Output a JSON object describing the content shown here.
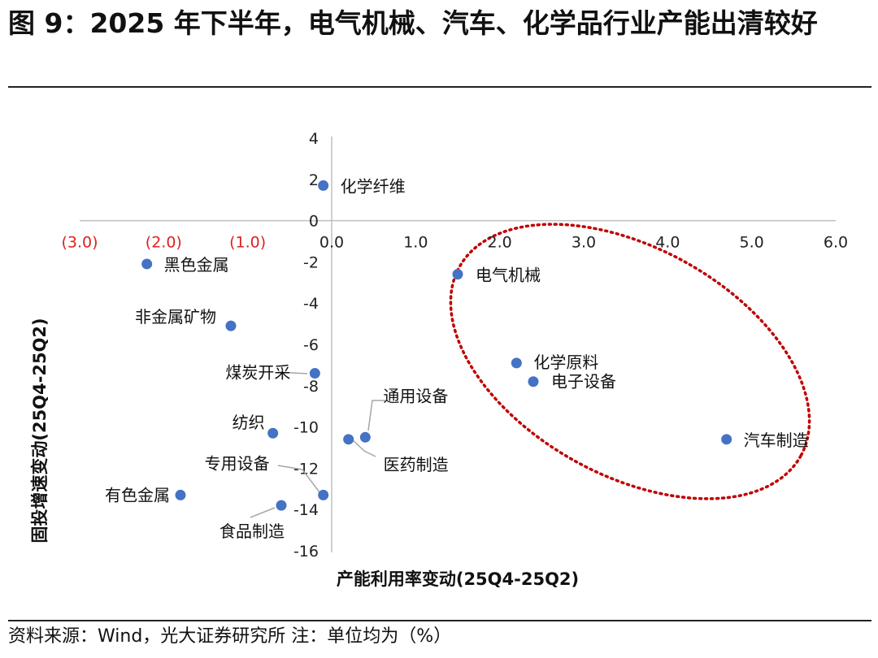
{
  "title": "图 9：2025 年下半年，电气机械、汽车、化学品行业产能出清较好",
  "source": "资料来源：Wind，光大证券研究所 注：单位均为（%）",
  "colors": {
    "point": "#4472C4",
    "neg_tick": "#E02020",
    "ellipse": "#C00000",
    "axis": "#BFBFBF",
    "leader": "#A6A6A6"
  },
  "chart_data": {
    "type": "scatter",
    "xlabel": "产能利用率变动(25Q4-25Q2)",
    "ylabel": "固投增速变动(25Q4-25Q2)",
    "xlim": [
      -3.0,
      6.0
    ],
    "ylim": [
      -16,
      4
    ],
    "x_ticks": [
      "(3.0)",
      "(2.0)",
      "(1.0)",
      "0.0",
      "1.0",
      "2.0",
      "3.0",
      "4.0",
      "5.0",
      "6.0"
    ],
    "x_tick_values": [
      -3,
      -2,
      -1,
      0,
      1,
      2,
      3,
      4,
      5,
      6
    ],
    "y_ticks": [
      "4",
      "2",
      "0",
      "-2",
      "-4",
      "-6",
      "-8",
      "-10",
      "-12",
      "-14",
      "-16"
    ],
    "y_tick_values": [
      4,
      2,
      0,
      -2,
      -4,
      -6,
      -8,
      -10,
      -12,
      -14,
      -16
    ],
    "points": [
      {
        "name": "化学纤维",
        "x": -0.1,
        "y": 1.7
      },
      {
        "name": "黑色金属",
        "x": -2.2,
        "y": -2.1
      },
      {
        "name": "电气机械",
        "x": 1.5,
        "y": -2.6
      },
      {
        "name": "非金属矿物",
        "x": -1.2,
        "y": -5.1
      },
      {
        "name": "化学原料",
        "x": 2.2,
        "y": -6.9
      },
      {
        "name": "电子设备",
        "x": 2.4,
        "y": -7.8
      },
      {
        "name": "煤炭开采",
        "x": -0.2,
        "y": -7.4
      },
      {
        "name": "纺织",
        "x": -0.7,
        "y": -10.3
      },
      {
        "name": "通用设备",
        "x": 0.4,
        "y": -10.5
      },
      {
        "name": "医药制造",
        "x": 0.2,
        "y": -10.6
      },
      {
        "name": "汽车制造",
        "x": 4.7,
        "y": -10.6
      },
      {
        "name": "专用设备",
        "x": -0.1,
        "y": -13.3
      },
      {
        "name": "有色金属",
        "x": -1.8,
        "y": -13.3
      },
      {
        "name": "食品制造",
        "x": -0.6,
        "y": -13.8
      }
    ],
    "annotation": "dotted ellipse highlighting 电气机械, 化学原料, 电子设备, 汽车制造"
  }
}
